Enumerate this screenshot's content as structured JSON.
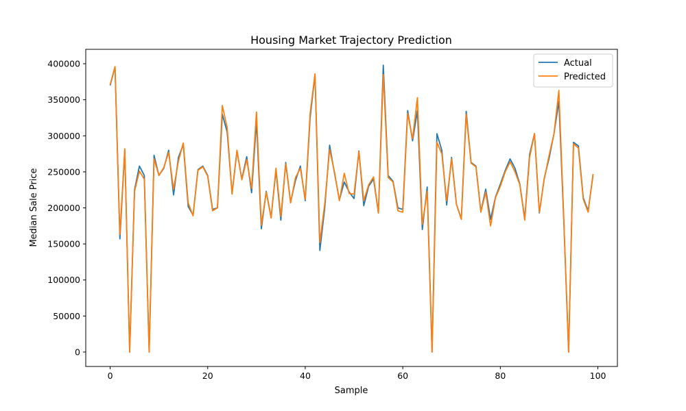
{
  "chart_data": {
    "type": "line",
    "title": "Housing Market Trajectory Prediction",
    "xlabel": "Sample",
    "ylabel": "Median Sale Price",
    "xlim": [
      -5,
      104
    ],
    "ylim": [
      -20000,
      420000
    ],
    "xticks": [
      0,
      20,
      40,
      60,
      80,
      100
    ],
    "yticks": [
      0,
      50000,
      100000,
      150000,
      200000,
      250000,
      300000,
      350000,
      400000
    ],
    "grid": false,
    "legend_position": "top-right",
    "x": [
      0,
      1,
      2,
      3,
      4,
      5,
      6,
      7,
      8,
      9,
      10,
      11,
      12,
      13,
      14,
      15,
      16,
      17,
      18,
      19,
      20,
      21,
      22,
      23,
      24,
      25,
      26,
      27,
      28,
      29,
      30,
      31,
      32,
      33,
      34,
      35,
      36,
      37,
      38,
      39,
      40,
      41,
      42,
      43,
      44,
      45,
      46,
      47,
      48,
      49,
      50,
      51,
      52,
      53,
      54,
      55,
      56,
      57,
      58,
      59,
      60,
      61,
      62,
      63,
      64,
      65,
      66,
      67,
      68,
      69,
      70,
      71,
      72,
      73,
      74,
      75,
      76,
      77,
      78,
      79,
      80,
      81,
      82,
      83,
      84,
      85,
      86,
      87,
      88,
      89,
      90,
      91,
      92,
      93,
      94,
      95,
      96,
      97,
      98,
      99
    ],
    "series": [
      {
        "name": "Actual",
        "color": "#1f77b4",
        "values": [
          370000,
          395000,
          157000,
          280000,
          0,
          225000,
          258000,
          245000,
          0,
          273000,
          245000,
          255000,
          280000,
          218000,
          270000,
          288000,
          202000,
          190000,
          253000,
          258000,
          245000,
          198000,
          200000,
          330000,
          305000,
          220000,
          279000,
          240000,
          271000,
          221000,
          320000,
          171000,
          223000,
          187000,
          252000,
          183000,
          263000,
          208000,
          238000,
          258000,
          210000,
          325000,
          385000,
          141000,
          200000,
          287000,
          248000,
          211000,
          236000,
          222000,
          213000,
          279000,
          203000,
          230000,
          240000,
          193000,
          398000,
          245000,
          237000,
          200000,
          198000,
          335000,
          293000,
          335000,
          170000,
          229000,
          0,
          303000,
          280000,
          204000,
          270000,
          205000,
          185000,
          334000,
          263000,
          258000,
          195000,
          226000,
          184000,
          215000,
          233000,
          252000,
          268000,
          255000,
          233000,
          185000,
          274000,
          303000,
          193000,
          241000,
          269000,
          303000,
          348000,
          183000,
          0,
          291000,
          286000,
          214000,
          196000,
          245000
        ]
      },
      {
        "name": "Predicted",
        "color": "#ff7f0e",
        "values": [
          371000,
          396000,
          163000,
          282000,
          0,
          223000,
          251000,
          240000,
          0,
          268000,
          245000,
          256000,
          277000,
          226000,
          265000,
          290000,
          207000,
          189000,
          252000,
          257000,
          244000,
          196000,
          200000,
          342000,
          311000,
          219000,
          280000,
          239000,
          267000,
          227000,
          333000,
          176000,
          222000,
          186000,
          255000,
          188000,
          261000,
          207000,
          242000,
          255000,
          212000,
          331000,
          386000,
          152000,
          206000,
          281000,
          250000,
          210000,
          248000,
          220000,
          219000,
          278000,
          210000,
          232000,
          243000,
          193000,
          385000,
          242000,
          236000,
          196000,
          194000,
          331000,
          296000,
          353000,
          177000,
          223000,
          0,
          291000,
          275000,
          210000,
          268000,
          205000,
          184000,
          330000,
          262000,
          257000,
          194000,
          222000,
          175000,
          214000,
          230000,
          250000,
          264000,
          250000,
          232000,
          183000,
          270000,
          303000,
          194000,
          240000,
          273000,
          303000,
          363000,
          187000,
          0,
          289000,
          283000,
          212000,
          194000,
          247000
        ]
      }
    ]
  }
}
